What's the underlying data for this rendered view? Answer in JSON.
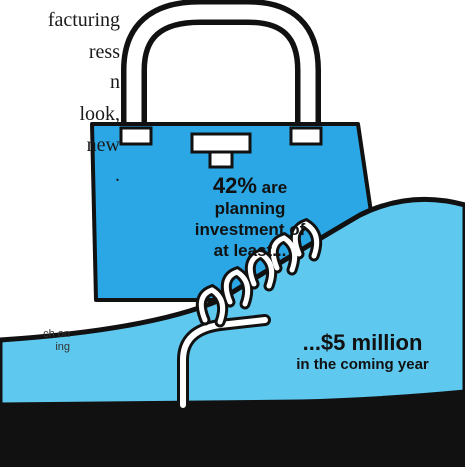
{
  "body_text": {
    "lines": [
      "facturing",
      "ress",
      "n",
      "look,",
      "new",
      "."
    ]
  },
  "source_text": {
    "lines": [
      "ch on",
      "ing"
    ]
  },
  "stat_one": {
    "percent": "42%",
    "rest": "are planning investment of at least..."
  },
  "stat_two": {
    "amount": "...$5 million",
    "caption": "in the coming year"
  },
  "colors": {
    "handbag_blue": "#2aa7e4",
    "shoe_blue": "#5ec8ef",
    "outline": "#111111",
    "handle": "#ffffff"
  },
  "icons": [
    "handbag-icon",
    "shoe-icon"
  ]
}
